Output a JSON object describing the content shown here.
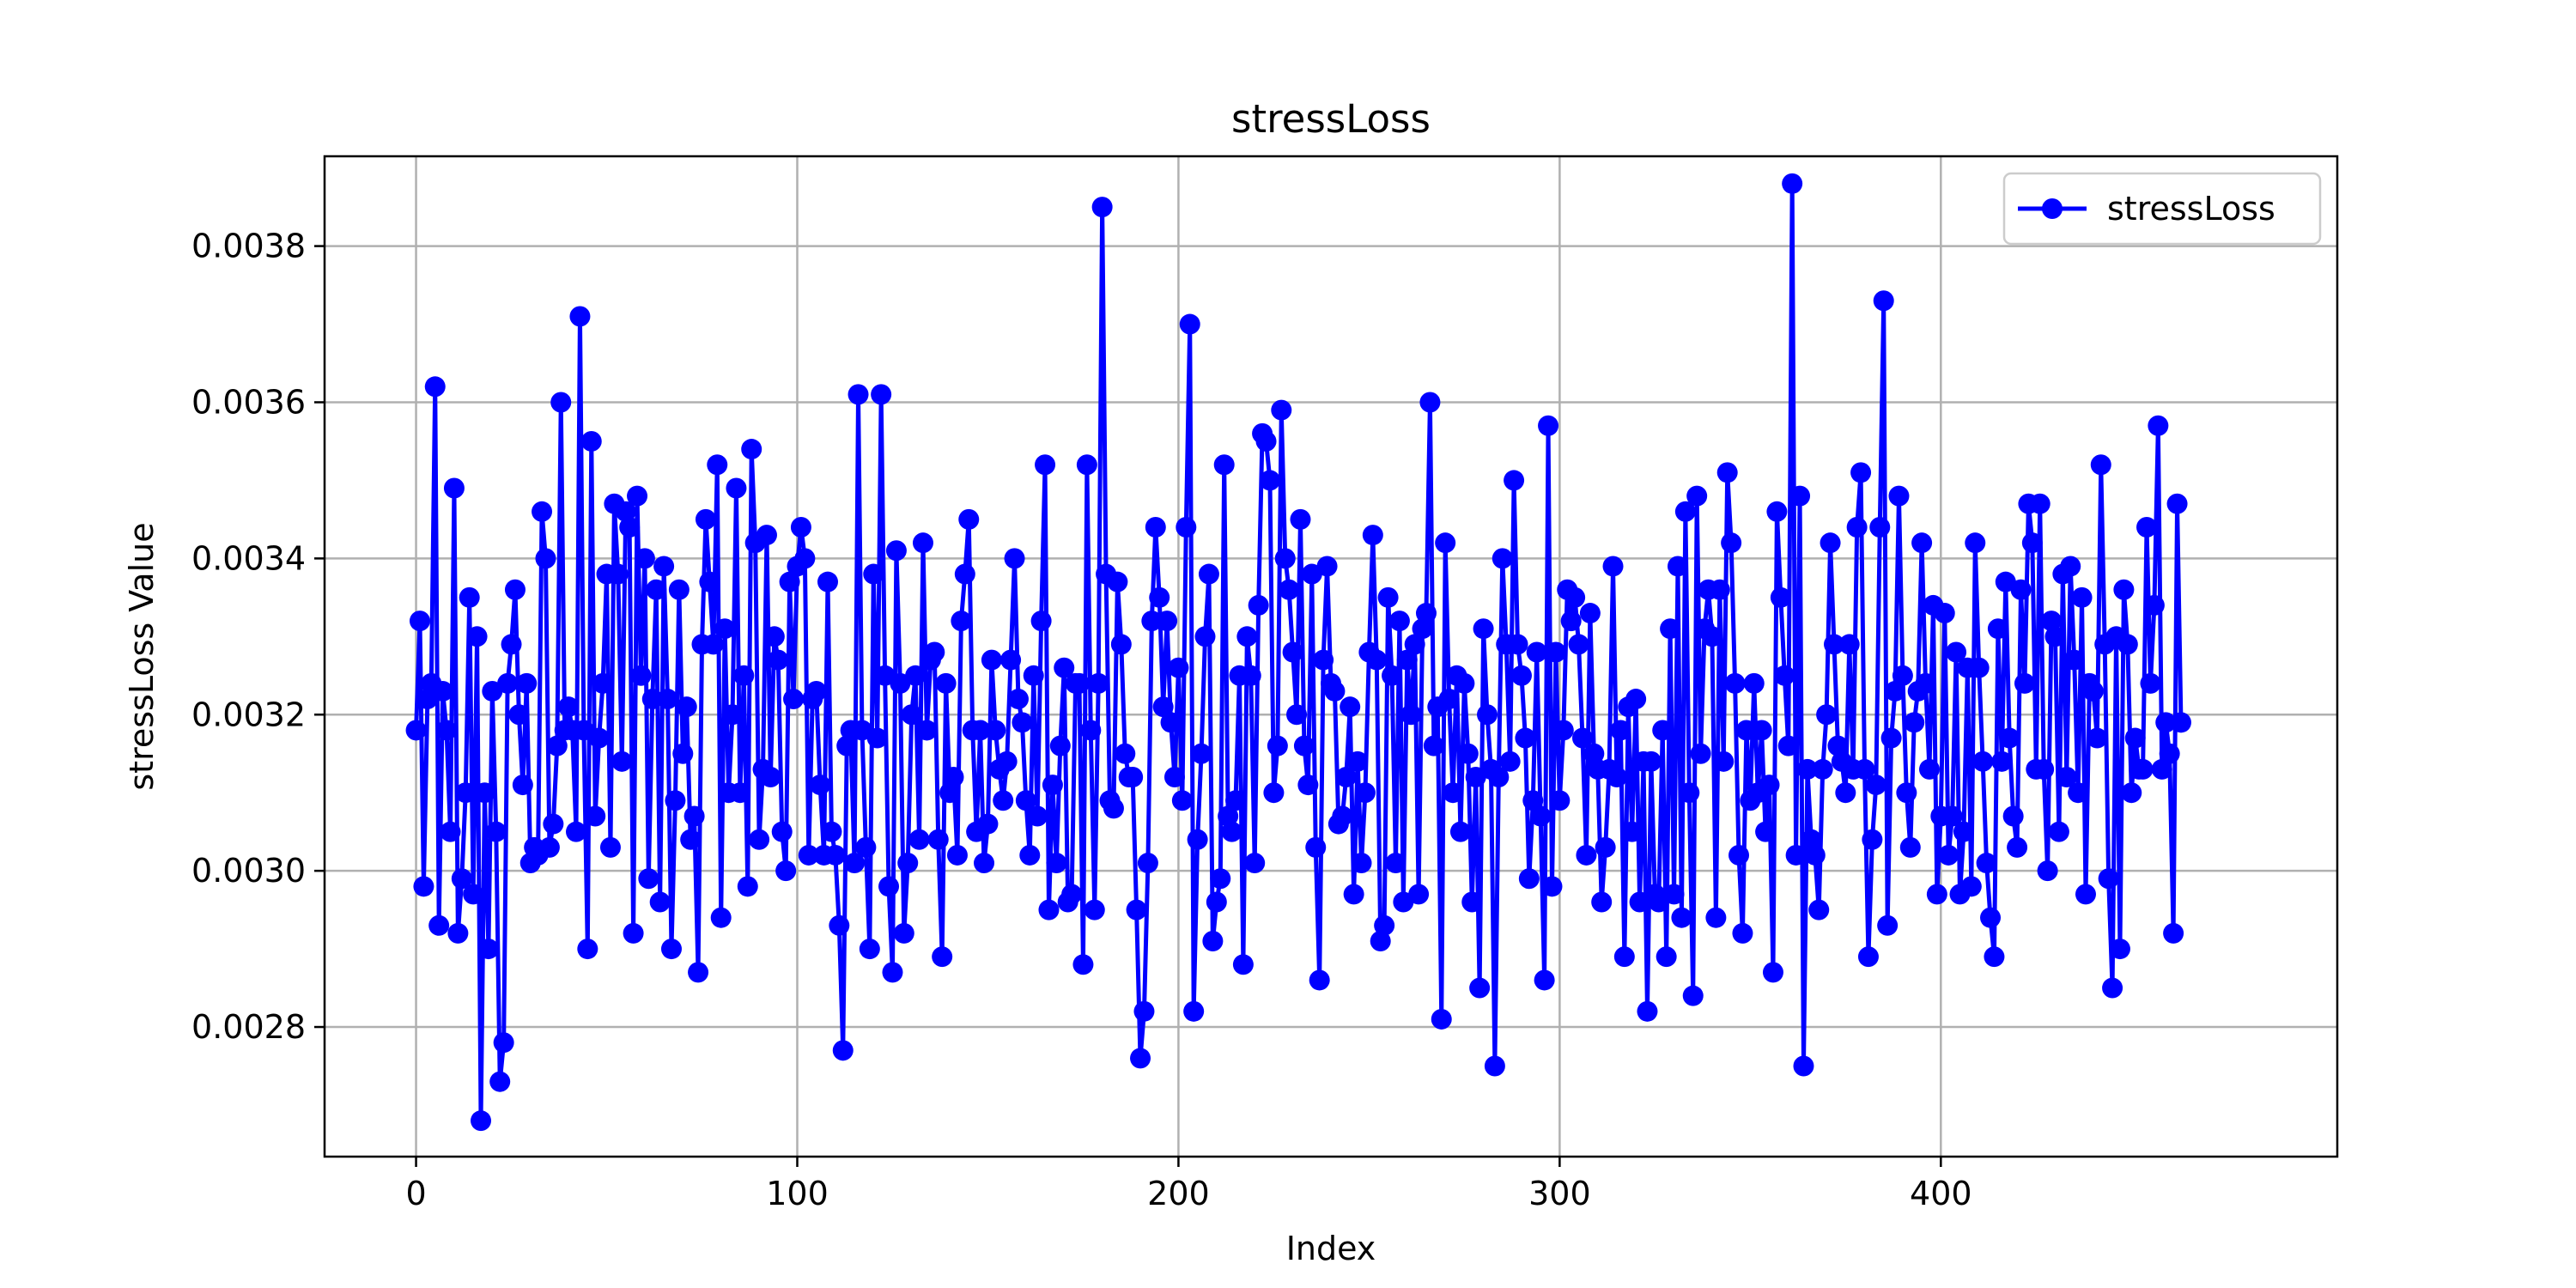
{
  "chart_data": {
    "type": "line",
    "title": "stressLoss",
    "xlabel": "Index",
    "ylabel": "stressLoss Value",
    "xlim": [
      -24,
      504
    ],
    "ylim": [
      0.002634,
      0.003915
    ],
    "xticks": [
      0,
      100,
      200,
      300,
      400
    ],
    "yticks": [
      0.0028,
      0.003,
      0.0032,
      0.0034,
      0.0036,
      0.0038
    ],
    "xtick_labels": [
      "0",
      "100",
      "200",
      "300",
      "400"
    ],
    "ytick_labels": [
      "0.0028",
      "0.0030",
      "0.0032",
      "0.0034",
      "0.0036",
      "0.0038"
    ],
    "grid": true,
    "legend_position": "top-right",
    "colors": {
      "series": "#0000ff"
    },
    "series": [
      {
        "name": "stressLoss",
        "marker": "circle",
        "x_start": 0,
        "x_step": 1,
        "values": [
          0.00318,
          0.00332,
          0.00298,
          0.00322,
          0.00324,
          0.00362,
          0.00293,
          0.00323,
          0.00318,
          0.00305,
          0.00349,
          0.00292,
          0.00299,
          0.0031,
          0.00335,
          0.00297,
          0.0033,
          0.00268,
          0.0031,
          0.0029,
          0.00323,
          0.00305,
          0.00273,
          0.00278,
          0.00324,
          0.00329,
          0.00336,
          0.0032,
          0.00311,
          0.00324,
          0.00301,
          0.00303,
          0.00302,
          0.00346,
          0.0034,
          0.00303,
          0.00306,
          0.00316,
          0.0036,
          0.00318,
          0.00321,
          0.00318,
          0.00305,
          0.00371,
          0.00318,
          0.0029,
          0.00355,
          0.00307,
          0.00317,
          0.00324,
          0.00338,
          0.00303,
          0.00347,
          0.00338,
          0.00314,
          0.00346,
          0.00344,
          0.00292,
          0.00348,
          0.00325,
          0.0034,
          0.00299,
          0.00322,
          0.00336,
          0.00296,
          0.00339,
          0.00322,
          0.0029,
          0.00309,
          0.00336,
          0.00315,
          0.00321,
          0.00304,
          0.00307,
          0.00287,
          0.00329,
          0.00345,
          0.00337,
          0.00329,
          0.00352,
          0.00294,
          0.00331,
          0.0031,
          0.0032,
          0.00349,
          0.0031,
          0.00325,
          0.00298,
          0.00354,
          0.00342,
          0.00304,
          0.00313,
          0.00343,
          0.00312,
          0.0033,
          0.00327,
          0.00305,
          0.003,
          0.00337,
          0.00322,
          0.00339,
          0.00344,
          0.0034,
          0.00302,
          0.00322,
          0.00323,
          0.00311,
          0.00302,
          0.00337,
          0.00305,
          0.00302,
          0.00293,
          0.00277,
          0.00316,
          0.00318,
          0.00301,
          0.00361,
          0.00318,
          0.00303,
          0.0029,
          0.00338,
          0.00317,
          0.00361,
          0.00325,
          0.00298,
          0.00287,
          0.00341,
          0.00324,
          0.00292,
          0.00301,
          0.0032,
          0.00325,
          0.00304,
          0.00342,
          0.00318,
          0.00327,
          0.00328,
          0.00304,
          0.00289,
          0.00324,
          0.0031,
          0.00312,
          0.00302,
          0.00332,
          0.00338,
          0.00345,
          0.00318,
          0.00305,
          0.00318,
          0.00301,
          0.00306,
          0.00327,
          0.00318,
          0.00313,
          0.00309,
          0.00314,
          0.00327,
          0.0034,
          0.00322,
          0.00319,
          0.00309,
          0.00302,
          0.00325,
          0.00307,
          0.00332,
          0.00352,
          0.00295,
          0.00311,
          0.00301,
          0.00316,
          0.00326,
          0.00296,
          0.00297,
          0.00324,
          0.00324,
          0.00288,
          0.00352,
          0.00318,
          0.00295,
          0.00324,
          0.00385,
          0.00338,
          0.00309,
          0.00308,
          0.00337,
          0.00329,
          0.00315,
          0.00312,
          0.00312,
          0.00295,
          0.00276,
          0.00282,
          0.00301,
          0.00332,
          0.00344,
          0.00335,
          0.00321,
          0.00332,
          0.00319,
          0.00312,
          0.00326,
          0.00309,
          0.00344,
          0.0037,
          0.00282,
          0.00304,
          0.00315,
          0.0033,
          0.00338,
          0.00291,
          0.00296,
          0.00299,
          0.00352,
          0.00307,
          0.00305,
          0.00309,
          0.00325,
          0.00288,
          0.0033,
          0.00325,
          0.00301,
          0.00334,
          0.00356,
          0.00355,
          0.0035,
          0.0031,
          0.00316,
          0.00359,
          0.0034,
          0.00336,
          0.00328,
          0.0032,
          0.00345,
          0.00316,
          0.00311,
          0.00338,
          0.00303,
          0.00286,
          0.00327,
          0.00339,
          0.00324,
          0.00323,
          0.00306,
          0.00307,
          0.00312,
          0.00321,
          0.00297,
          0.00314,
          0.00301,
          0.0031,
          0.00328,
          0.00343,
          0.00327,
          0.00291,
          0.00293,
          0.00335,
          0.00325,
          0.00301,
          0.00332,
          0.00296,
          0.00327,
          0.0032,
          0.00329,
          0.00297,
          0.00331,
          0.00333,
          0.0036,
          0.00316,
          0.00321,
          0.00281,
          0.00342,
          0.00322,
          0.0031,
          0.00325,
          0.00305,
          0.00324,
          0.00315,
          0.00296,
          0.00312,
          0.00285,
          0.00331,
          0.0032,
          0.00313,
          0.00275,
          0.00312,
          0.0034,
          0.00329,
          0.00314,
          0.0035,
          0.00329,
          0.00325,
          0.00317,
          0.00299,
          0.00309,
          0.00328,
          0.00307,
          0.00286,
          0.00357,
          0.00298,
          0.00328,
          0.00309,
          0.00318,
          0.00336,
          0.00332,
          0.00335,
          0.00329,
          0.00317,
          0.00302,
          0.00333,
          0.00315,
          0.00313,
          0.00296,
          0.00303,
          0.00313,
          0.00339,
          0.00312,
          0.00318,
          0.00289,
          0.00321,
          0.00305,
          0.00322,
          0.00296,
          0.00314,
          0.00282,
          0.00314,
          0.00297,
          0.00296,
          0.00318,
          0.00289,
          0.00331,
          0.00297,
          0.00339,
          0.00294,
          0.00346,
          0.0031,
          0.00284,
          0.00348,
          0.00315,
          0.00331,
          0.00336,
          0.0033,
          0.00294,
          0.00336,
          0.00314,
          0.00351,
          0.00342,
          0.00324,
          0.00302,
          0.00292,
          0.00318,
          0.00309,
          0.00324,
          0.0031,
          0.00318,
          0.00305,
          0.00311,
          0.00287,
          0.00346,
          0.00335,
          0.00325,
          0.00316,
          0.00388,
          0.00302,
          0.00348,
          0.00275,
          0.00313,
          0.00304,
          0.00302,
          0.00295,
          0.00313,
          0.0032,
          0.00342,
          0.00329,
          0.00316,
          0.00314,
          0.0031,
          0.00329,
          0.00313,
          0.00344,
          0.00351,
          0.00313,
          0.00289,
          0.00304,
          0.00311,
          0.00344,
          0.00373,
          0.00293,
          0.00317,
          0.00323,
          0.00348,
          0.00325,
          0.0031,
          0.00303,
          0.00319,
          0.00323,
          0.00342,
          0.00324,
          0.00313,
          0.00334,
          0.00297,
          0.00307,
          0.00333,
          0.00302,
          0.00307,
          0.00328,
          0.00297,
          0.00305,
          0.00326,
          0.00298,
          0.00342,
          0.00326,
          0.00314,
          0.00301,
          0.00294,
          0.00289,
          0.00331,
          0.00314,
          0.00337,
          0.00317,
          0.00307,
          0.00303,
          0.00336,
          0.00324,
          0.00347,
          0.00342,
          0.00313,
          0.00347,
          0.00313,
          0.003,
          0.00332,
          0.0033,
          0.00305,
          0.00338,
          0.00312,
          0.00339,
          0.00327,
          0.0031,
          0.00335,
          0.00297,
          0.00324,
          0.00323,
          0.00317,
          0.00352,
          0.00329,
          0.00299,
          0.00285,
          0.0033,
          0.0029,
          0.00336,
          0.00329,
          0.0031,
          0.00317,
          0.00313,
          0.00313,
          0.00344,
          0.00324,
          0.00334,
          0.00357,
          0.00313,
          0.00319,
          0.00315,
          0.00292,
          0.00347,
          0.00319
        ]
      }
    ]
  }
}
